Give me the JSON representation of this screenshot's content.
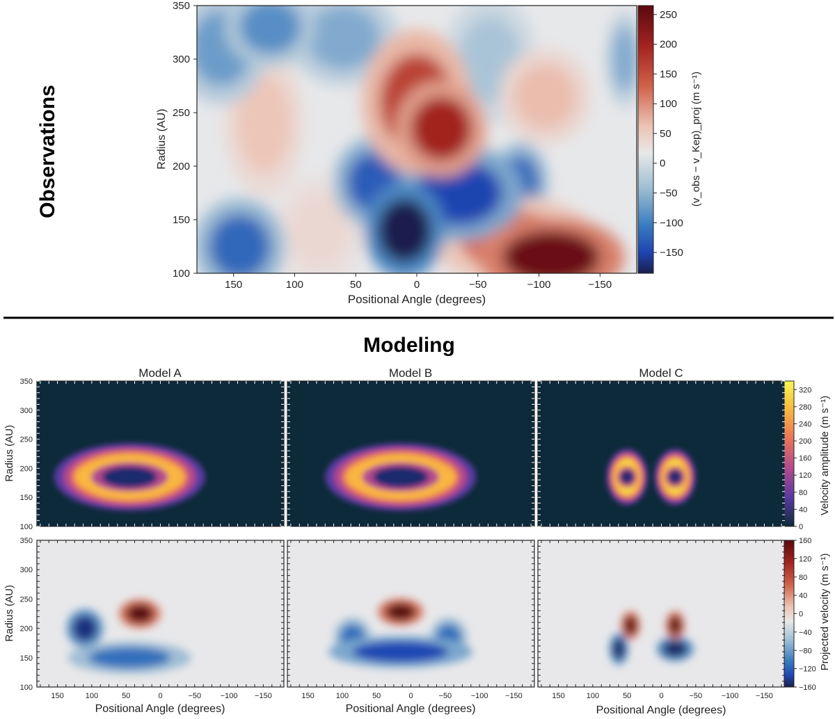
{
  "sections": {
    "observations": "Observations",
    "modeling": "Modeling"
  },
  "chart_data": [
    {
      "id": "observations",
      "type": "heatmap",
      "title": "",
      "xlabel": "Positional Angle (degrees)",
      "ylabel": "Radius (AU)",
      "xlim": [
        180,
        -180
      ],
      "ylim": [
        100,
        350
      ],
      "xticks": [
        150,
        100,
        50,
        0,
        -50,
        -100,
        -150
      ],
      "xtick_labels": [
        "150",
        "100",
        "50",
        "0",
        "−50",
        "−100",
        "−150"
      ],
      "yticks": [
        100,
        150,
        200,
        250,
        300,
        350
      ],
      "ytick_labels": [
        "100",
        "150",
        "200",
        "250",
        "300",
        "350"
      ],
      "colorbar": {
        "label_main": "(v",
        "label_full": "(v_obs − v_Kep)_proj (m s⁻¹)",
        "range": [
          -185,
          265
        ],
        "ticks": [
          250,
          200,
          150,
          100,
          50,
          0,
          -50,
          -100,
          -150
        ],
        "tick_labels": [
          "250",
          "200",
          "150",
          "100",
          "50",
          "0",
          "−50",
          "−100",
          "−150"
        ],
        "cmap": "diverging"
      },
      "features": [
        {
          "pa": 10,
          "r": 140,
          "spread_pa": 22,
          "spread_r": 30,
          "value": -185
        },
        {
          "pa": -35,
          "r": 175,
          "spread_pa": 35,
          "spread_r": 30,
          "value": -140
        },
        {
          "pa": 35,
          "r": 185,
          "spread_pa": 22,
          "spread_r": 28,
          "value": -120
        },
        {
          "pa": -85,
          "r": 185,
          "spread_pa": 15,
          "spread_r": 25,
          "value": -110
        },
        {
          "pa": 145,
          "r": 125,
          "spread_pa": 25,
          "spread_r": 30,
          "value": -110
        },
        {
          "pa": 160,
          "r": 310,
          "spread_pa": 25,
          "spread_r": 35,
          "value": -70
        },
        {
          "pa": 120,
          "r": 330,
          "spread_pa": 25,
          "spread_r": 25,
          "value": -80
        },
        {
          "pa": 60,
          "r": 320,
          "spread_pa": 30,
          "spread_r": 30,
          "value": -60
        },
        {
          "pa": -60,
          "r": 300,
          "spread_pa": 25,
          "spread_r": 40,
          "value": -40
        },
        {
          "pa": -170,
          "r": 300,
          "spread_pa": 10,
          "spread_r": 30,
          "value": -60
        },
        {
          "pa": 0,
          "r": 260,
          "spread_pa": 30,
          "spread_r": 45,
          "value": 165
        },
        {
          "pa": -20,
          "r": 235,
          "spread_pa": 25,
          "spread_r": 30,
          "value": 200
        },
        {
          "pa": -110,
          "r": 115,
          "spread_pa": 40,
          "spread_r": 25,
          "value": 250
        },
        {
          "pa": -80,
          "r": 130,
          "spread_pa": 45,
          "spread_r": 28,
          "value": 120
        },
        {
          "pa": 125,
          "r": 240,
          "spread_pa": 22,
          "spread_r": 45,
          "value": 60
        },
        {
          "pa": -105,
          "r": 265,
          "spread_pa": 25,
          "spread_r": 30,
          "value": 70
        },
        {
          "pa": 80,
          "r": 140,
          "spread_pa": 25,
          "spread_r": 35,
          "value": 30
        }
      ]
    },
    {
      "id": "model-a-amplitude",
      "type": "heatmap",
      "title": "Model A",
      "xlabel": "",
      "ylabel": "Radius (AU)",
      "xlim": [
        180,
        -180
      ],
      "ylim": [
        100,
        350
      ],
      "field": "ring",
      "features": [
        {
          "pa": 45,
          "r": 185,
          "inner_pa": 40,
          "inner_r": 18,
          "outer_pa": 110,
          "outer_r": 58,
          "value": 340
        }
      ]
    },
    {
      "id": "model-b-amplitude",
      "type": "heatmap",
      "title": "Model B",
      "xlabel": "",
      "ylabel": "",
      "xlim": [
        180,
        -180
      ],
      "ylim": [
        100,
        350
      ],
      "field": "ring",
      "features": [
        {
          "pa": 15,
          "r": 185,
          "inner_pa": 40,
          "inner_r": 18,
          "outer_pa": 110,
          "outer_r": 58,
          "value": 340
        }
      ]
    },
    {
      "id": "model-c-amplitude",
      "type": "heatmap",
      "title": "Model C",
      "xlabel": "",
      "ylabel": "",
      "xlim": [
        180,
        -180
      ],
      "ylim": [
        100,
        350
      ],
      "field": "ring",
      "features": [
        {
          "pa": 50,
          "r": 185,
          "inner_pa": 10,
          "inner_r": 12,
          "outer_pa": 30,
          "outer_r": 48,
          "value": 340
        },
        {
          "pa": -20,
          "r": 185,
          "inner_pa": 10,
          "inner_r": 12,
          "outer_pa": 30,
          "outer_r": 48,
          "value": 340
        }
      ],
      "colorbar": {
        "label": "Velocity amplitude  (m s⁻¹)",
        "range": [
          0,
          340
        ],
        "ticks": [
          320,
          280,
          240,
          200,
          160,
          120,
          80,
          40,
          0
        ],
        "tick_labels": [
          "320",
          "280",
          "240",
          "200",
          "160",
          "120",
          "80",
          "40",
          "0"
        ],
        "cmap": "plasma"
      }
    },
    {
      "id": "model-a-projected",
      "type": "heatmap",
      "title": "",
      "xlabel": "Positional Angle (degrees)",
      "ylabel": "Radius (AU)",
      "xlim": [
        180,
        -180
      ],
      "ylim": [
        100,
        350
      ],
      "features": [
        {
          "pa": 30,
          "r": 225,
          "spread_pa": 20,
          "spread_r": 16,
          "value": 160
        },
        {
          "pa": 110,
          "r": 200,
          "spread_pa": 18,
          "spread_r": 22,
          "value": -140
        },
        {
          "pa": 45,
          "r": 150,
          "spread_pa": 60,
          "spread_r": 18,
          "value": -90
        }
      ]
    },
    {
      "id": "model-b-projected",
      "type": "heatmap",
      "title": "",
      "xlabel": "Positional Angle (degrees)",
      "ylabel": "",
      "xlim": [
        180,
        -180
      ],
      "ylim": [
        100,
        350
      ],
      "features": [
        {
          "pa": 15,
          "r": 228,
          "spread_pa": 22,
          "spread_r": 15,
          "value": 160
        },
        {
          "pa": 15,
          "r": 160,
          "spread_pa": 70,
          "spread_r": 18,
          "value": -120
        },
        {
          "pa": 85,
          "r": 185,
          "spread_pa": 18,
          "spread_r": 22,
          "value": -90
        },
        {
          "pa": -55,
          "r": 185,
          "spread_pa": 18,
          "spread_r": 22,
          "value": -90
        }
      ]
    },
    {
      "id": "model-c-projected",
      "type": "heatmap",
      "title": "",
      "xlabel": "Positional Angle (degrees)",
      "ylabel": "",
      "xlim": [
        180,
        -180
      ],
      "ylim": [
        100,
        350
      ],
      "features": [
        {
          "pa": 45,
          "r": 205,
          "spread_pa": 9,
          "spread_r": 16,
          "value": 160
        },
        {
          "pa": -20,
          "r": 205,
          "spread_pa": 9,
          "spread_r": 16,
          "value": 160
        },
        {
          "pa": 62,
          "r": 165,
          "spread_pa": 9,
          "spread_r": 18,
          "value": -150
        },
        {
          "pa": -20,
          "r": 165,
          "spread_pa": 18,
          "spread_r": 14,
          "value": -150
        }
      ],
      "colorbar": {
        "label": "Projected velocity  (m s⁻¹)",
        "range": [
          -160,
          160
        ],
        "ticks": [
          160,
          120,
          80,
          40,
          0,
          -40,
          -80,
          -120,
          -160
        ],
        "tick_labels": [
          "160",
          "120",
          "80",
          "40",
          "0",
          "−40",
          "−80",
          "−120",
          "−160"
        ],
        "cmap": "diverging"
      }
    }
  ],
  "model_xticks": [
    150,
    100,
    50,
    0,
    -50,
    -100,
    -150
  ],
  "model_xtick_labels": [
    "150",
    "100",
    "50",
    "0",
    "−50",
    "−100",
    "−150"
  ],
  "model_yticks": [
    100,
    150,
    200,
    250,
    300,
    350
  ],
  "model_ytick_labels": [
    "100",
    "150",
    "200",
    "250",
    "300",
    "350"
  ],
  "colors": {
    "diverging_neg": "#1f2a6b",
    "diverging_pos": "#6b0d0d",
    "plasma_bg": "#0d2a3a"
  }
}
